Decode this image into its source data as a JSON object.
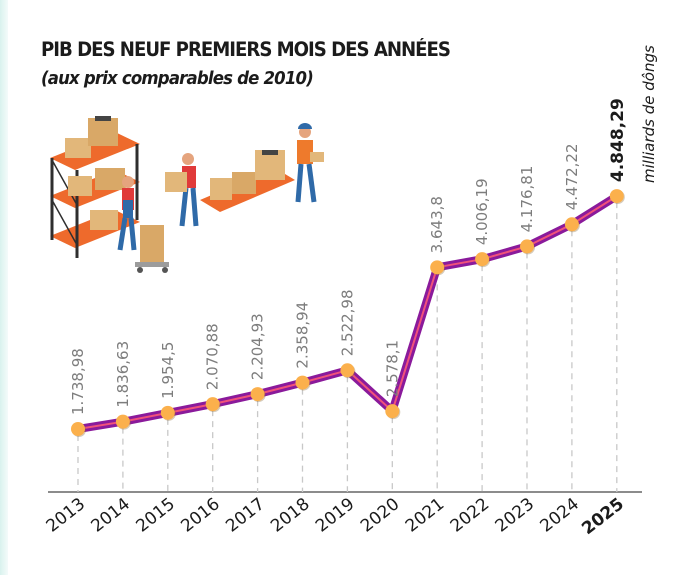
{
  "chart_data": {
    "type": "line",
    "title": "PIB DES NEUF PREMIERS MOIS DES ANNÉES",
    "subtitle": "(aux prix comparables de 2010)",
    "unit_label": "milliards de dôngs",
    "xlabel": "",
    "ylabel": "",
    "grid": false,
    "categories": [
      "2013",
      "2014",
      "2015",
      "2016",
      "2017",
      "2018",
      "2019",
      "2020",
      "2021",
      "2022",
      "2023",
      "2024",
      "2025"
    ],
    "series": [
      {
        "name": "PIB",
        "values": [
          1738.98,
          1836.63,
          1954.5,
          2070.88,
          2204.93,
          2358.94,
          2522.98,
          2578.1,
          3643.8,
          4006.19,
          4176.81,
          4472.22,
          4848.29
        ],
        "labels": [
          "1.738,98",
          "1.836,63",
          "1.954,5",
          "2.070,88",
          "2.204,93",
          "2.358,94",
          "2.522,98",
          "2.578,1",
          "3.643,8",
          "4.006,19",
          "4.176,81",
          "4.472,22",
          "4.848,29"
        ]
      }
    ],
    "highlight_index": 12,
    "colors": {
      "line_outer": "#8a1a9b",
      "line_inner": "#f0527a",
      "marker": "#fbb04c",
      "dash": "#c8c8c8",
      "axis": "#666666"
    }
  },
  "illustration": {
    "icon": "warehouse-workers-icon"
  }
}
